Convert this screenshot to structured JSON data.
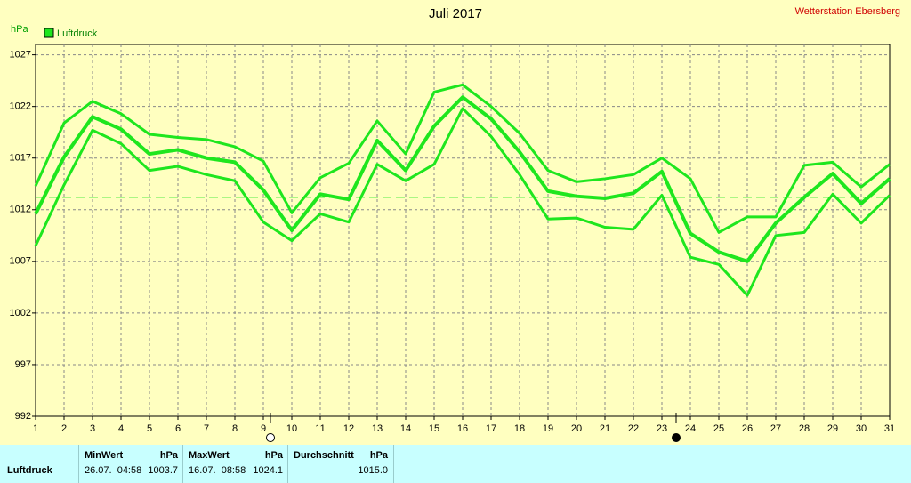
{
  "chart_data": {
    "type": "line",
    "title": "Juli 2017",
    "subtitle": "Wetterstation Ebersberg",
    "y_label": "hPa",
    "x": [
      1,
      2,
      3,
      4,
      5,
      6,
      7,
      8,
      9,
      10,
      11,
      12,
      13,
      14,
      15,
      16,
      17,
      18,
      19,
      20,
      21,
      22,
      23,
      24,
      25,
      26,
      27,
      28,
      29,
      30,
      31
    ],
    "xlim": [
      1,
      31
    ],
    "xticks": [
      1,
      2,
      3,
      4,
      5,
      6,
      7,
      8,
      9,
      10,
      11,
      12,
      13,
      14,
      15,
      16,
      17,
      18,
      19,
      20,
      21,
      22,
      23,
      24,
      25,
      26,
      27,
      28,
      29,
      30,
      31
    ],
    "ylim": [
      992,
      1028
    ],
    "yticks": [
      992,
      997,
      1002,
      1007,
      1012,
      1017,
      1022,
      1027
    ],
    "grid": true,
    "reference_line": 1013.2,
    "series": [
      {
        "name": "Luftdruck",
        "color": "#1ee61e",
        "values": [
          1011.6,
          1017.1,
          1021.0,
          1019.8,
          1017.4,
          1017.8,
          1017.0,
          1016.6,
          1013.9,
          1010.0,
          1013.5,
          1013.0,
          1018.7,
          1015.8,
          1020.1,
          1022.9,
          1020.8,
          1017.6,
          1013.8,
          1013.3,
          1013.1,
          1013.6,
          1015.7,
          1009.7,
          1007.9,
          1007.0,
          1010.7,
          1013.2,
          1015.5,
          1012.6,
          1015.0
        ],
        "upper": [
          1014.3,
          1020.4,
          1022.5,
          1021.3,
          1019.3,
          1019.0,
          1018.8,
          1018.1,
          1016.7,
          1011.7,
          1015.1,
          1016.5,
          1020.6,
          1017.4,
          1023.4,
          1024.1,
          1022.0,
          1019.4,
          1015.8,
          1014.7,
          1015.0,
          1015.4,
          1017.0,
          1015.0,
          1009.8,
          1011.3,
          1011.3,
          1016.3,
          1016.6,
          1014.2,
          1016.4
        ],
        "lower": [
          1008.5,
          1014.4,
          1019.7,
          1018.4,
          1015.8,
          1016.2,
          1015.4,
          1014.8,
          1010.8,
          1009.0,
          1011.6,
          1010.8,
          1016.4,
          1014.8,
          1016.4,
          1021.8,
          1019.1,
          1015.4,
          1011.1,
          1011.2,
          1010.3,
          1010.1,
          1013.4,
          1007.4,
          1006.7,
          1003.7,
          1009.5,
          1009.8,
          1013.5,
          1010.7,
          1013.4
        ]
      }
    ]
  },
  "table": {
    "columns": [
      {
        "title": "MinWert",
        "unit": "hPa"
      },
      {
        "title": "MaxWert",
        "unit": "hPa"
      },
      {
        "title": "Durchschnitt",
        "unit": "hPa"
      }
    ],
    "rows": [
      {
        "label": "Luftdruck",
        "cells": [
          {
            "time": "26.07.  04:58",
            "value": "1003.7"
          },
          {
            "time": "16.07.  08:58",
            "value": "1024.1"
          },
          {
            "time": "",
            "value": "1015.0"
          }
        ]
      }
    ]
  }
}
